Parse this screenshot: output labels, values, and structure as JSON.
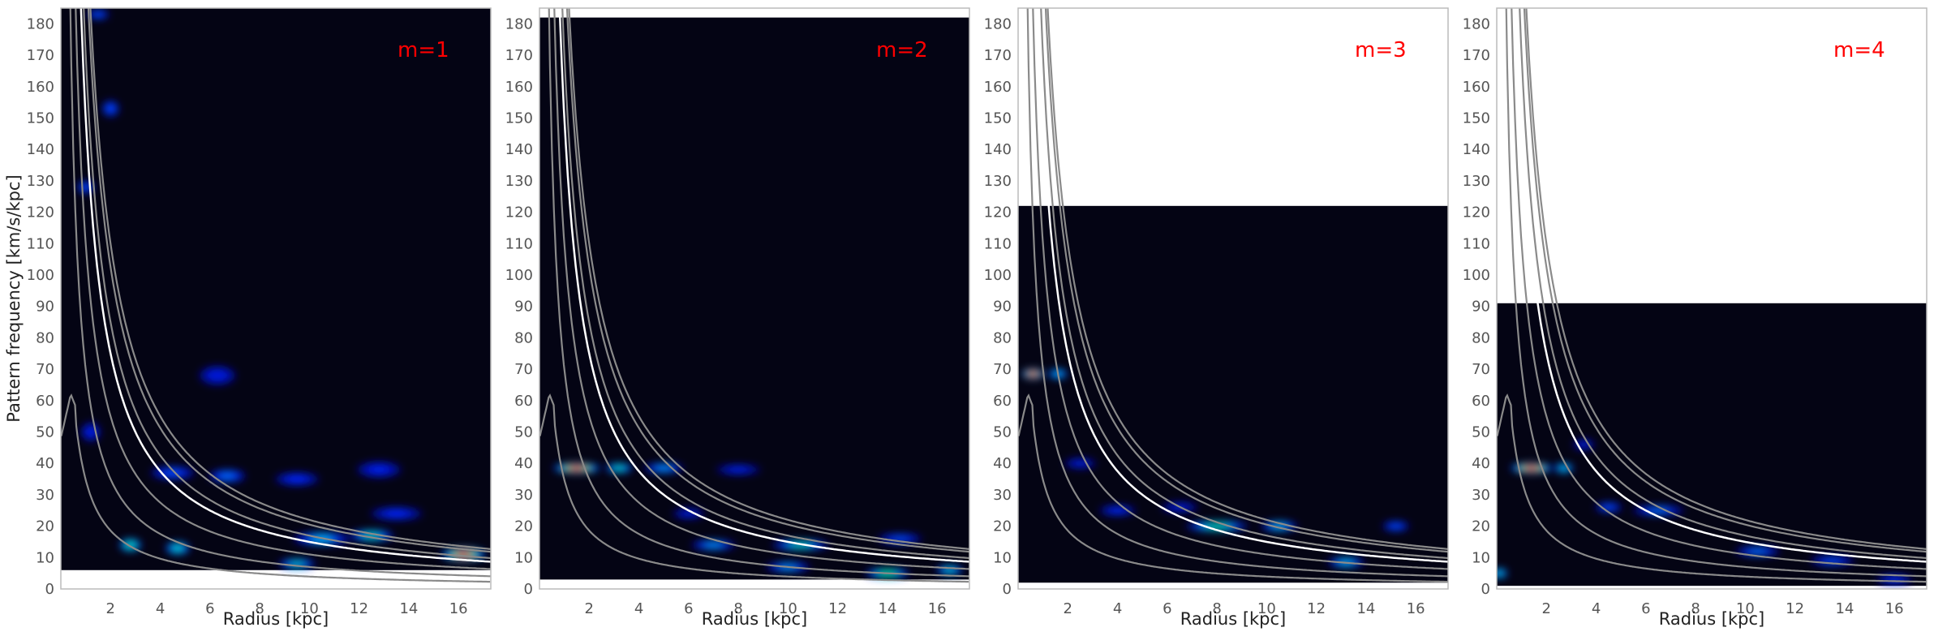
{
  "chart_data": [
    {
      "type": "heatmap",
      "label": "m=1",
      "m": 1,
      "xlabel": "Radius [kpc]",
      "ylabel": "Pattern frequency [km/s/kpc]",
      "xlim": [
        0,
        17.3
      ],
      "ylim": [
        0,
        185
      ],
      "xticks": [
        2,
        4,
        6,
        8,
        10,
        12,
        14,
        16
      ],
      "yticks": [
        0,
        10,
        20,
        30,
        40,
        50,
        60,
        70,
        80,
        90,
        100,
        110,
        120,
        130,
        140,
        150,
        160,
        170,
        180
      ],
      "data_y_range": [
        6,
        185
      ],
      "colormap": "black-blue-cyan-green-yellow-red",
      "features": [
        {
          "x": 16.2,
          "y": 11,
          "w": 1.5,
          "h": 3,
          "intensity": 1.0
        },
        {
          "x": 12.5,
          "y": 17,
          "w": 1.5,
          "h": 2.5,
          "intensity": 0.55
        },
        {
          "x": 10.5,
          "y": 16,
          "w": 2.0,
          "h": 3,
          "intensity": 0.45
        },
        {
          "x": 9.5,
          "y": 8,
          "w": 1.2,
          "h": 2,
          "intensity": 0.5
        },
        {
          "x": 4.7,
          "y": 13,
          "w": 0.7,
          "h": 3,
          "intensity": 0.55
        },
        {
          "x": 2.8,
          "y": 14,
          "w": 0.6,
          "h": 3,
          "intensity": 0.6
        },
        {
          "x": 6.7,
          "y": 36,
          "w": 1.2,
          "h": 3,
          "intensity": 0.35
        },
        {
          "x": 4.5,
          "y": 37,
          "w": 1.5,
          "h": 3,
          "intensity": 0.3
        },
        {
          "x": 9.5,
          "y": 35,
          "w": 1.5,
          "h": 3,
          "intensity": 0.25
        },
        {
          "x": 12.8,
          "y": 38,
          "w": 1.5,
          "h": 4,
          "intensity": 0.22
        },
        {
          "x": 2.0,
          "y": 153,
          "w": 0.4,
          "h": 4,
          "intensity": 0.3
        },
        {
          "x": 1.0,
          "y": 128,
          "w": 0.4,
          "h": 3,
          "intensity": 0.3
        },
        {
          "x": 1.5,
          "y": 183,
          "w": 0.6,
          "h": 2,
          "intensity": 0.3
        },
        {
          "x": 6.3,
          "y": 68,
          "w": 1.2,
          "h": 5,
          "intensity": 0.2
        },
        {
          "x": 13.5,
          "y": 24,
          "w": 1.8,
          "h": 3,
          "intensity": 0.25
        },
        {
          "x": 1.2,
          "y": 50,
          "w": 0.5,
          "h": 5,
          "intensity": 0.2
        }
      ]
    },
    {
      "type": "heatmap",
      "label": "m=2",
      "m": 2,
      "xlabel": "Radius [kpc]",
      "ylabel": "",
      "xlim": [
        0,
        17.3
      ],
      "ylim": [
        0,
        185
      ],
      "xticks": [
        2,
        4,
        6,
        8,
        10,
        12,
        14,
        16
      ],
      "yticks": [
        0,
        10,
        20,
        30,
        40,
        50,
        60,
        70,
        80,
        90,
        100,
        110,
        120,
        130,
        140,
        150,
        160,
        170,
        180
      ],
      "data_y_range": [
        3,
        182
      ],
      "colormap": "black-blue-cyan-green-yellow-red",
      "features": [
        {
          "x": 1.5,
          "y": 38.5,
          "w": 1.6,
          "h": 1.5,
          "intensity": 1.0
        },
        {
          "x": 3.2,
          "y": 38.5,
          "w": 0.8,
          "h": 1.5,
          "intensity": 0.55
        },
        {
          "x": 5.0,
          "y": 38.5,
          "w": 1.3,
          "h": 2,
          "intensity": 0.4
        },
        {
          "x": 10.5,
          "y": 14,
          "w": 2.0,
          "h": 2,
          "intensity": 0.55
        },
        {
          "x": 7.0,
          "y": 14,
          "w": 1.5,
          "h": 2,
          "intensity": 0.4
        },
        {
          "x": 14.0,
          "y": 5,
          "w": 1.5,
          "h": 1.5,
          "intensity": 0.65
        },
        {
          "x": 10.0,
          "y": 7,
          "w": 1.5,
          "h": 1.5,
          "intensity": 0.4
        },
        {
          "x": 16.5,
          "y": 6,
          "w": 0.8,
          "h": 1.5,
          "intensity": 0.5
        },
        {
          "x": 8.0,
          "y": 38,
          "w": 1.5,
          "h": 2,
          "intensity": 0.22
        },
        {
          "x": 14.5,
          "y": 16,
          "w": 1.5,
          "h": 2,
          "intensity": 0.3
        },
        {
          "x": 6.0,
          "y": 24,
          "w": 1.0,
          "h": 2,
          "intensity": 0.2
        }
      ]
    },
    {
      "type": "heatmap",
      "label": "m=3",
      "m": 3,
      "xlabel": "Radius [kpc]",
      "ylabel": "",
      "xlim": [
        0,
        17.3
      ],
      "ylim": [
        0,
        185
      ],
      "xticks": [
        2,
        4,
        6,
        8,
        10,
        12,
        14,
        16
      ],
      "yticks": [
        0,
        10,
        20,
        30,
        40,
        50,
        60,
        70,
        80,
        90,
        100,
        110,
        120,
        130,
        140,
        150,
        160,
        170,
        180
      ],
      "data_y_range": [
        2,
        122
      ],
      "colormap": "black-blue-cyan-green-yellow-red",
      "features": [
        {
          "x": 0.6,
          "y": 68.5,
          "w": 0.6,
          "h": 1.2,
          "intensity": 1.0
        },
        {
          "x": 1.6,
          "y": 68.5,
          "w": 0.5,
          "h": 1.2,
          "intensity": 0.45
        },
        {
          "x": 8.0,
          "y": 20,
          "w": 2.2,
          "h": 1.2,
          "intensity": 0.6
        },
        {
          "x": 10.5,
          "y": 20,
          "w": 1.2,
          "h": 1.2,
          "intensity": 0.45
        },
        {
          "x": 13.2,
          "y": 8.5,
          "w": 1.2,
          "h": 1.2,
          "intensity": 0.45
        },
        {
          "x": 15.2,
          "y": 20,
          "w": 0.8,
          "h": 1.5,
          "intensity": 0.3
        },
        {
          "x": 4.0,
          "y": 25,
          "w": 1.2,
          "h": 1.5,
          "intensity": 0.25
        },
        {
          "x": 2.5,
          "y": 40,
          "w": 1.0,
          "h": 2,
          "intensity": 0.2
        },
        {
          "x": 6.5,
          "y": 26,
          "w": 1.2,
          "h": 1.5,
          "intensity": 0.2
        }
      ]
    },
    {
      "type": "heatmap",
      "label": "m=4",
      "m": 4,
      "xlabel": "Radius [kpc]",
      "ylabel": "",
      "xlim": [
        0,
        17.3
      ],
      "ylim": [
        0,
        185
      ],
      "xticks": [
        2,
        4,
        6,
        8,
        10,
        12,
        14,
        16
      ],
      "yticks": [
        0,
        10,
        20,
        30,
        40,
        50,
        60,
        70,
        80,
        90,
        100,
        110,
        120,
        130,
        140,
        150,
        160,
        170,
        180
      ],
      "data_y_range": [
        1,
        91
      ],
      "colormap": "black-blue-cyan-green-yellow-red",
      "features": [
        {
          "x": 1.4,
          "y": 38.5,
          "w": 1.4,
          "h": 1.2,
          "intensity": 1.0
        },
        {
          "x": 2.7,
          "y": 38.5,
          "w": 0.5,
          "h": 1.2,
          "intensity": 0.5
        },
        {
          "x": 6.5,
          "y": 25,
          "w": 1.8,
          "h": 1.2,
          "intensity": 0.35
        },
        {
          "x": 4.5,
          "y": 26,
          "w": 0.8,
          "h": 1.2,
          "intensity": 0.3
        },
        {
          "x": 10.5,
          "y": 12,
          "w": 1.5,
          "h": 1.2,
          "intensity": 0.35
        },
        {
          "x": 13.5,
          "y": 9,
          "w": 1.5,
          "h": 1.2,
          "intensity": 0.3
        },
        {
          "x": 16.0,
          "y": 3,
          "w": 1.2,
          "h": 1.0,
          "intensity": 0.25
        },
        {
          "x": 3.5,
          "y": 46,
          "w": 0.6,
          "h": 2,
          "intensity": 0.2
        },
        {
          "x": 0.1,
          "y": 5,
          "w": 0.15,
          "h": 1.5,
          "intensity": 0.5
        }
      ]
    }
  ]
}
